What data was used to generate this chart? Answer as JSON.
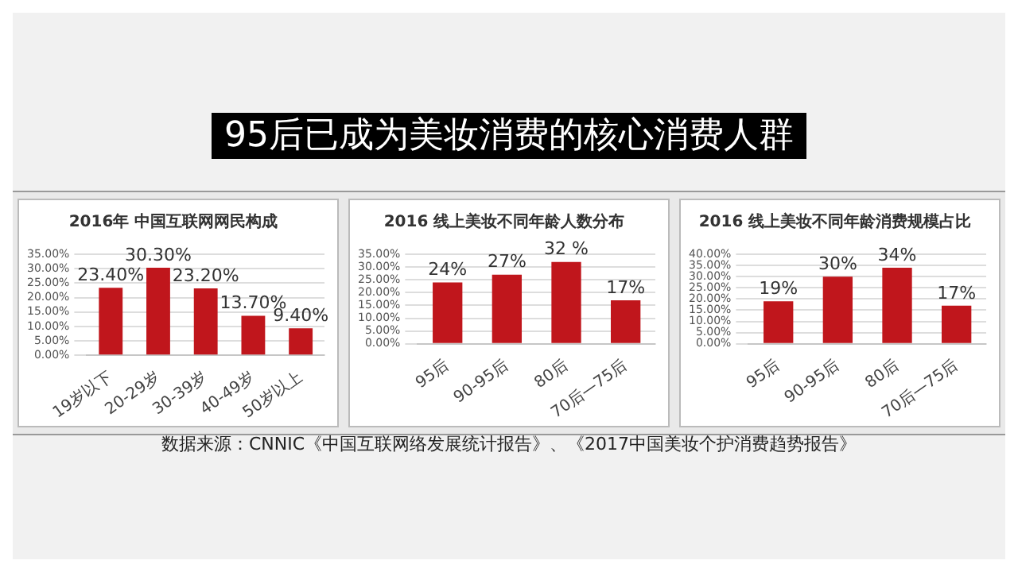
{
  "chart_data": [
    {
      "type": "other",
      "title": "95后已成为美妆消费的核心消费人群",
      "annotations": [
        "数据来源：CNNIC《中国互联网络发展统计报告》、《2017中国美妆个护消费趋势报告》"
      ]
    },
    {
      "type": "bar",
      "title": "2016年 中国互联网网民构成",
      "categories": [
        "19岁以下",
        "20-29岁",
        "30-39岁",
        "40-49岁",
        "50岁以上"
      ],
      "values": [
        23.4,
        30.3,
        23.2,
        13.7,
        9.4
      ],
      "value_labels": [
        "23.40%",
        "30.30%",
        "23.20%",
        "13.70%",
        "9.40%"
      ],
      "color": "#c0161c",
      "ylim": [
        0,
        35
      ],
      "yticks": [
        {
          "value": 0,
          "label": "0.00%"
        },
        {
          "value": 5,
          "label": "5.00%"
        },
        {
          "value": 10,
          "label": "10.00%"
        },
        {
          "value": 15,
          "label": "15.00%"
        },
        {
          "value": 20,
          "label": "20.00%"
        },
        {
          "value": 25,
          "label": "25.00%"
        },
        {
          "value": 30,
          "label": "30.00%"
        },
        {
          "value": 35,
          "label": "35.00%"
        }
      ],
      "grid": "y"
    },
    {
      "type": "bar",
      "title": "2016 线上美妆不同年龄人数分布",
      "categories": [
        "95后",
        "90-95后",
        "80后",
        "70后—75后"
      ],
      "values": [
        24,
        27,
        32,
        17
      ],
      "value_labels": [
        "24%",
        "27%",
        "32 %",
        "17%"
      ],
      "color": "#c0161c",
      "ylim": [
        0,
        35
      ],
      "yticks": [
        {
          "value": 0,
          "label": "0.00%"
        },
        {
          "value": 5,
          "label": "5.00%"
        },
        {
          "value": 10,
          "label": "10.00%"
        },
        {
          "value": 15,
          "label": "15.00%"
        },
        {
          "value": 20,
          "label": "20.00%"
        },
        {
          "value": 25,
          "label": "25.00%"
        },
        {
          "value": 30,
          "label": "30.00%"
        },
        {
          "value": 35,
          "label": "35.00%"
        }
      ],
      "grid": "y"
    },
    {
      "type": "bar",
      "title": "2016 线上美妆不同年龄消费规模占比",
      "categories": [
        "95后",
        "90-95后",
        "80后",
        "70后—75后"
      ],
      "values": [
        19,
        30,
        34,
        17
      ],
      "value_labels": [
        "19%",
        "30%",
        "34%",
        "17%"
      ],
      "color": "#c0161c",
      "ylim": [
        0,
        40
      ],
      "yticks": [
        {
          "value": 0,
          "label": "0.00%"
        },
        {
          "value": 5,
          "label": "5.00%"
        },
        {
          "value": 10,
          "label": "10.00%"
        },
        {
          "value": 15,
          "label": "15.00%"
        },
        {
          "value": 20,
          "label": "20.00%"
        },
        {
          "value": 25,
          "label": "25.00%"
        },
        {
          "value": 30,
          "label": "30.00%"
        },
        {
          "value": 35,
          "label": "35.00%"
        },
        {
          "value": 40,
          "label": "40.00%"
        }
      ],
      "grid": "y"
    }
  ]
}
